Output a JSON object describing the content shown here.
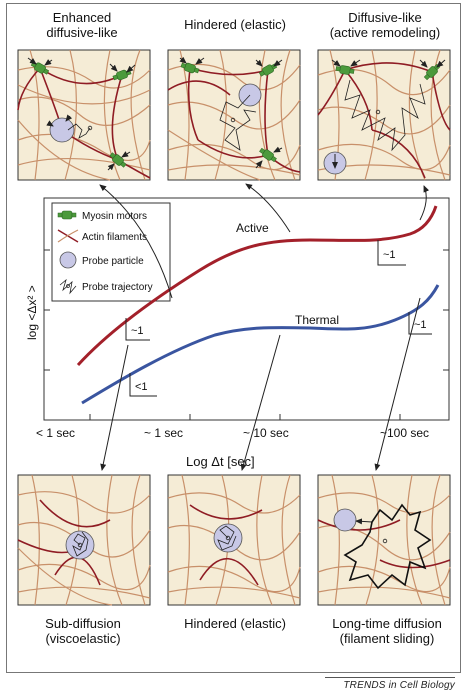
{
  "top_panels": [
    {
      "title": "Enhanced\ndiffusive-like"
    },
    {
      "title": "Hindered (elastic)"
    },
    {
      "title": "Diffusive-like\n(active remodeling)"
    }
  ],
  "bottom_panels": [
    {
      "caption": "Sub-diffusion\n(viscoelastic)"
    },
    {
      "caption": "Hindered (elastic)"
    },
    {
      "caption": "Long-time diffusion\n(filament sliding)"
    }
  ],
  "legend": {
    "items": [
      {
        "label": "Myosin motors",
        "icon": "myosin-motor-icon"
      },
      {
        "label": "Actin filaments",
        "icon": "actin-filament-icon"
      },
      {
        "label": "Probe particle",
        "icon": "probe-particle-icon"
      },
      {
        "label": "Probe trajectory",
        "icon": "probe-trajectory-icon"
      }
    ]
  },
  "chart_data": {
    "type": "line",
    "ylabel": "log <Δx² >",
    "xlabel": "Log Δt [sec]",
    "x_ticks": [
      "< 1 sec",
      "~ 1 sec",
      "~ 10 sec",
      "~100 sec"
    ],
    "series": [
      {
        "name": "Active",
        "color": "#a3202a"
      },
      {
        "name": "Thermal",
        "color": "#3a55a0"
      }
    ],
    "slope_labels": [
      "~1",
      "<1",
      "~1",
      "~1"
    ]
  },
  "colors": {
    "actin": "#c8906a",
    "actin_dark": "#8f1c24",
    "myosin": "#4c9a3c",
    "probe": "#c8c8e6",
    "panel_bg": "#f5ecd6"
  },
  "footer": "TRENDS in Cell Biology"
}
